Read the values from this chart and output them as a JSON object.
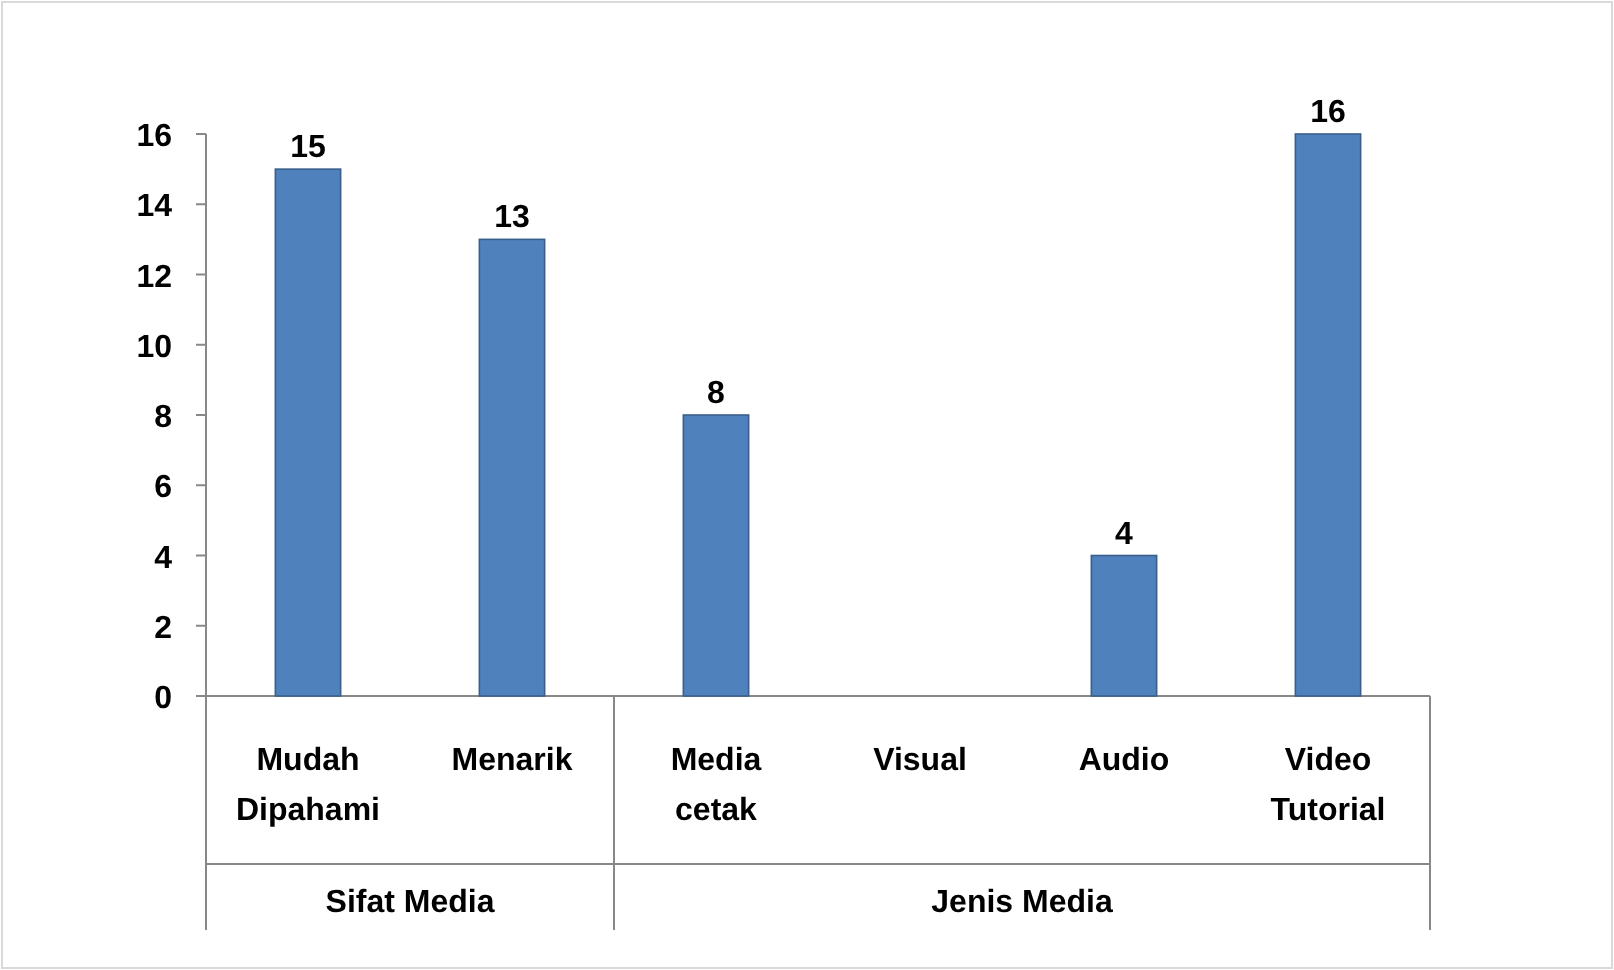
{
  "chart_data": {
    "type": "bar",
    "categories": [
      "Mudah Dipahami",
      "Menarik",
      "Media cetak",
      "Visual",
      "Audio",
      "Video Tutorial"
    ],
    "values": [
      15,
      13,
      8,
      null,
      4,
      16
    ],
    "color": "#4f81bd",
    "ylim": [
      0,
      16
    ],
    "yticks": [
      0,
      2,
      4,
      6,
      8,
      10,
      12,
      14,
      16
    ],
    "data_labels": true,
    "annotations": [
      "Sifat Media",
      "Jenis Media"
    ]
  }
}
